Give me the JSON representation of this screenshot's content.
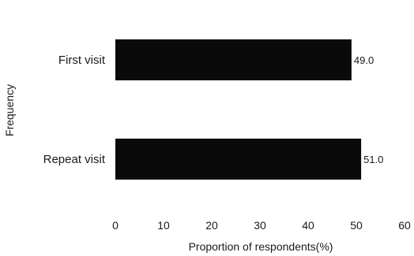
{
  "chart_data": {
    "type": "bar",
    "orientation": "horizontal",
    "title": "",
    "xlabel": "Proportion of respondents(%)",
    "ylabel": "Frequency",
    "categories": [
      "First visit",
      "Repeat visit"
    ],
    "values": [
      49.0,
      51.0
    ],
    "data_labels": [
      "49.0",
      "51.0"
    ],
    "xlim": [
      0,
      60
    ],
    "xticks": [
      0,
      10,
      20,
      30,
      40,
      50,
      60
    ],
    "xtick_labels": [
      "0",
      "10",
      "20",
      "30",
      "40",
      "50",
      "60"
    ],
    "grid": false,
    "legend": "none",
    "bar_color": "#0a0a0a"
  }
}
